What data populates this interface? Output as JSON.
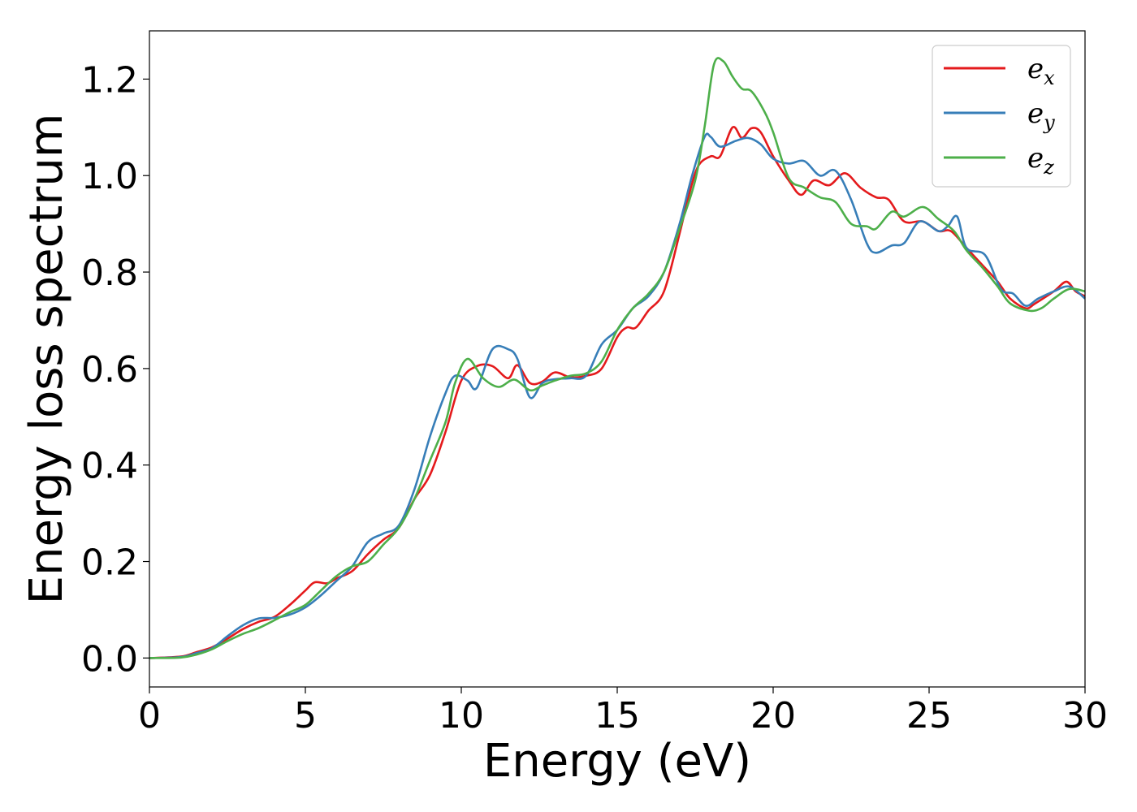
{
  "chart_data": {
    "type": "line",
    "title": "",
    "xlabel": "Energy (eV)",
    "ylabel": "Energy loss spectrum",
    "xlim": [
      0,
      30
    ],
    "ylim": [
      -0.06,
      1.3
    ],
    "xticks": [
      0,
      5,
      10,
      15,
      20,
      25,
      30
    ],
    "xtick_labels": [
      "0",
      "5",
      "10",
      "15",
      "20",
      "25",
      "30"
    ],
    "yticks": [
      0.0,
      0.2,
      0.4,
      0.6,
      0.8,
      1.0,
      1.2
    ],
    "ytick_labels": [
      "0.0",
      "0.2",
      "0.4",
      "0.6",
      "0.8",
      "1.0",
      "1.2"
    ],
    "grid": false,
    "legend_position": "top-right",
    "series": [
      {
        "name": "e_x",
        "label_base": "e",
        "label_sub": "x",
        "color": "#e41a1c",
        "points": [
          [
            0,
            0
          ],
          [
            1,
            0.003
          ],
          [
            1.5,
            0.012
          ],
          [
            2,
            0.022
          ],
          [
            2.5,
            0.04
          ],
          [
            3,
            0.06
          ],
          [
            3.5,
            0.075
          ],
          [
            4,
            0.085
          ],
          [
            4.5,
            0.11
          ],
          [
            5,
            0.14
          ],
          [
            5.3,
            0.157
          ],
          [
            5.7,
            0.155
          ],
          [
            6,
            0.165
          ],
          [
            6.5,
            0.18
          ],
          [
            7,
            0.215
          ],
          [
            7.5,
            0.245
          ],
          [
            8,
            0.27
          ],
          [
            8.5,
            0.33
          ],
          [
            9,
            0.38
          ],
          [
            9.5,
            0.47
          ],
          [
            10,
            0.575
          ],
          [
            10.5,
            0.605
          ],
          [
            11,
            0.605
          ],
          [
            11.5,
            0.58
          ],
          [
            11.8,
            0.607
          ],
          [
            12.2,
            0.57
          ],
          [
            12.6,
            0.573
          ],
          [
            13,
            0.592
          ],
          [
            13.5,
            0.582
          ],
          [
            14,
            0.585
          ],
          [
            14.5,
            0.6
          ],
          [
            15,
            0.665
          ],
          [
            15.3,
            0.685
          ],
          [
            15.6,
            0.685
          ],
          [
            16,
            0.72
          ],
          [
            16.5,
            0.76
          ],
          [
            17,
            0.88
          ],
          [
            17.3,
            0.96
          ],
          [
            17.6,
            1.02
          ],
          [
            18,
            1.04
          ],
          [
            18.3,
            1.04
          ],
          [
            18.7,
            1.1
          ],
          [
            19,
            1.078
          ],
          [
            19.3,
            1.098
          ],
          [
            19.6,
            1.09
          ],
          [
            20,
            1.04
          ],
          [
            20.5,
            0.99
          ],
          [
            20.9,
            0.96
          ],
          [
            21.3,
            0.99
          ],
          [
            21.8,
            0.98
          ],
          [
            22.3,
            1.005
          ],
          [
            22.8,
            0.975
          ],
          [
            23.3,
            0.955
          ],
          [
            23.7,
            0.95
          ],
          [
            24.2,
            0.905
          ],
          [
            24.8,
            0.905
          ],
          [
            25.3,
            0.885
          ],
          [
            25.7,
            0.885
          ],
          [
            26.2,
            0.85
          ],
          [
            26.7,
            0.815
          ],
          [
            27.2,
            0.78
          ],
          [
            27.6,
            0.745
          ],
          [
            28.1,
            0.725
          ],
          [
            28.4,
            0.735
          ],
          [
            29,
            0.76
          ],
          [
            29.4,
            0.78
          ],
          [
            29.7,
            0.76
          ],
          [
            30,
            0.75
          ]
        ]
      },
      {
        "name": "e_y",
        "label_base": "e",
        "label_sub": "y",
        "color": "#377eb8",
        "points": [
          [
            0,
            0
          ],
          [
            1,
            0.002
          ],
          [
            1.5,
            0.01
          ],
          [
            2,
            0.02
          ],
          [
            2.5,
            0.045
          ],
          [
            3,
            0.068
          ],
          [
            3.5,
            0.082
          ],
          [
            4,
            0.083
          ],
          [
            4.5,
            0.09
          ],
          [
            5,
            0.105
          ],
          [
            5.5,
            0.13
          ],
          [
            6,
            0.16
          ],
          [
            6.5,
            0.19
          ],
          [
            7,
            0.24
          ],
          [
            7.5,
            0.258
          ],
          [
            8,
            0.275
          ],
          [
            8.5,
            0.35
          ],
          [
            9,
            0.46
          ],
          [
            9.5,
            0.55
          ],
          [
            9.8,
            0.585
          ],
          [
            10.2,
            0.575
          ],
          [
            10.5,
            0.56
          ],
          [
            11,
            0.64
          ],
          [
            11.5,
            0.64
          ],
          [
            11.8,
            0.62
          ],
          [
            12.2,
            0.54
          ],
          [
            12.6,
            0.57
          ],
          [
            13,
            0.578
          ],
          [
            13.5,
            0.58
          ],
          [
            14,
            0.585
          ],
          [
            14.5,
            0.65
          ],
          [
            15,
            0.68
          ],
          [
            15.5,
            0.725
          ],
          [
            16,
            0.75
          ],
          [
            16.5,
            0.8
          ],
          [
            17,
            0.9
          ],
          [
            17.4,
            1.0
          ],
          [
            17.8,
            1.08
          ],
          [
            18,
            1.08
          ],
          [
            18.3,
            1.06
          ],
          [
            18.8,
            1.072
          ],
          [
            19.2,
            1.078
          ],
          [
            19.6,
            1.065
          ],
          [
            20,
            1.035
          ],
          [
            20.5,
            1.025
          ],
          [
            21,
            1.03
          ],
          [
            21.5,
            1.0
          ],
          [
            22,
            1.01
          ],
          [
            22.5,
            0.95
          ],
          [
            23,
            0.86
          ],
          [
            23.3,
            0.84
          ],
          [
            23.8,
            0.855
          ],
          [
            24.2,
            0.86
          ],
          [
            24.7,
            0.905
          ],
          [
            25.3,
            0.885
          ],
          [
            25.6,
            0.895
          ],
          [
            25.9,
            0.915
          ],
          [
            26.2,
            0.85
          ],
          [
            26.8,
            0.835
          ],
          [
            27.3,
            0.765
          ],
          [
            27.7,
            0.755
          ],
          [
            28.1,
            0.73
          ],
          [
            28.5,
            0.745
          ],
          [
            29,
            0.76
          ],
          [
            29.5,
            0.77
          ],
          [
            30,
            0.745
          ]
        ]
      },
      {
        "name": "e_z",
        "label_base": "e",
        "label_sub": "z",
        "color": "#4daf4a",
        "points": [
          [
            0,
            0
          ],
          [
            1,
            0.001
          ],
          [
            1.5,
            0.007
          ],
          [
            2,
            0.018
          ],
          [
            2.5,
            0.035
          ],
          [
            3,
            0.05
          ],
          [
            3.5,
            0.062
          ],
          [
            4,
            0.078
          ],
          [
            4.5,
            0.095
          ],
          [
            5,
            0.11
          ],
          [
            5.5,
            0.14
          ],
          [
            6,
            0.17
          ],
          [
            6.5,
            0.19
          ],
          [
            7,
            0.2
          ],
          [
            7.5,
            0.235
          ],
          [
            8,
            0.27
          ],
          [
            8.5,
            0.33
          ],
          [
            9,
            0.41
          ],
          [
            9.5,
            0.49
          ],
          [
            9.8,
            0.57
          ],
          [
            10.2,
            0.62
          ],
          [
            10.7,
            0.58
          ],
          [
            11.2,
            0.562
          ],
          [
            11.7,
            0.577
          ],
          [
            12.2,
            0.555
          ],
          [
            12.6,
            0.565
          ],
          [
            13,
            0.575
          ],
          [
            13.5,
            0.585
          ],
          [
            14,
            0.59
          ],
          [
            14.5,
            0.615
          ],
          [
            15,
            0.68
          ],
          [
            15.5,
            0.725
          ],
          [
            16,
            0.755
          ],
          [
            16.5,
            0.8
          ],
          [
            17,
            0.89
          ],
          [
            17.5,
            0.99
          ],
          [
            17.8,
            1.1
          ],
          [
            18.1,
            1.23
          ],
          [
            18.4,
            1.237
          ],
          [
            18.7,
            1.205
          ],
          [
            19,
            1.18
          ],
          [
            19.3,
            1.175
          ],
          [
            19.7,
            1.135
          ],
          [
            20,
            1.09
          ],
          [
            20.5,
            0.995
          ],
          [
            21,
            0.975
          ],
          [
            21.5,
            0.955
          ],
          [
            22,
            0.945
          ],
          [
            22.5,
            0.9
          ],
          [
            23,
            0.895
          ],
          [
            23.3,
            0.89
          ],
          [
            23.8,
            0.925
          ],
          [
            24.2,
            0.915
          ],
          [
            24.8,
            0.935
          ],
          [
            25.3,
            0.91
          ],
          [
            25.8,
            0.885
          ],
          [
            26.2,
            0.845
          ],
          [
            26.7,
            0.81
          ],
          [
            27.2,
            0.77
          ],
          [
            27.6,
            0.735
          ],
          [
            28.2,
            0.72
          ],
          [
            28.6,
            0.725
          ],
          [
            29,
            0.745
          ],
          [
            29.5,
            0.765
          ],
          [
            30,
            0.76
          ]
        ]
      }
    ]
  }
}
